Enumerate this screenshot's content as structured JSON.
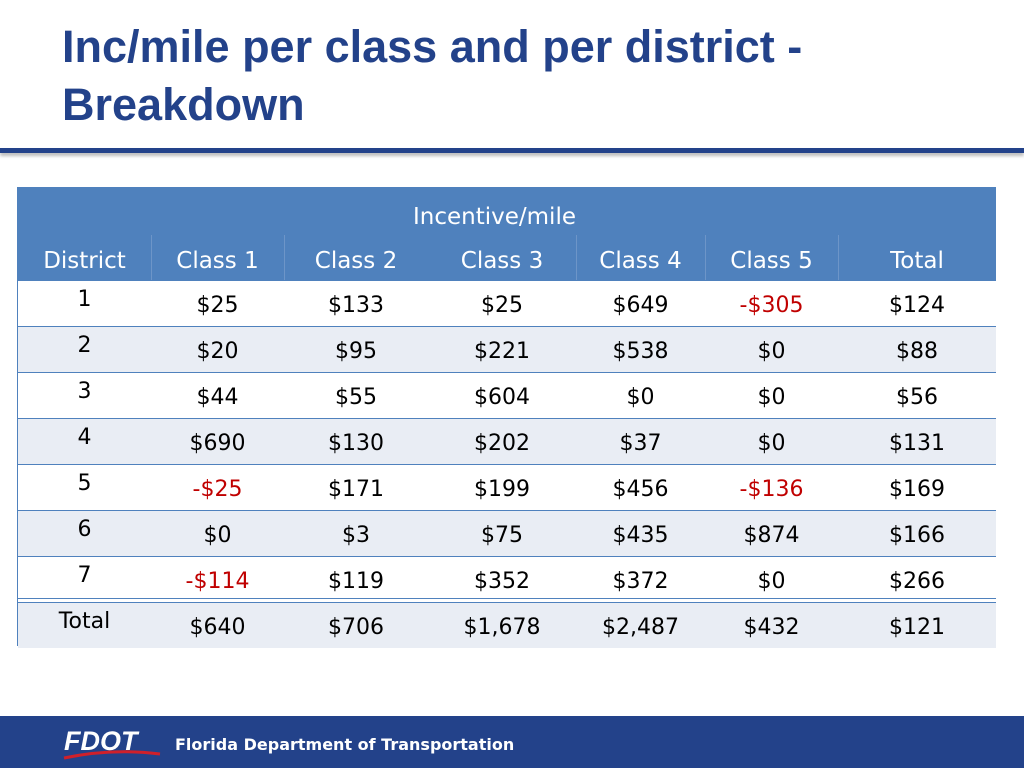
{
  "header": {
    "title": "Inc/mile per class and per district - Breakdown"
  },
  "table": {
    "group_header": "Incentive/mile",
    "columns": [
      "District",
      "Class 1",
      "Class 2",
      "Class 3",
      "Class 4",
      "Class 5",
      "Total"
    ],
    "rows": [
      [
        "1",
        "$25",
        "$133",
        "$25",
        "$649",
        "-$305",
        "$124"
      ],
      [
        "2",
        "$20",
        "$95",
        "$221",
        "$538",
        "$0",
        "$88"
      ],
      [
        "3",
        "$44",
        "$55",
        "$604",
        "$0",
        "$0",
        "$56"
      ],
      [
        "4",
        "$690",
        "$130",
        "$202",
        "$37",
        "$0",
        "$131"
      ],
      [
        "5",
        "-$25",
        "$171",
        "$199",
        "$456",
        "-$136",
        "$169"
      ],
      [
        "6",
        "$0",
        "$3",
        "$75",
        "$435",
        "$874",
        "$166"
      ],
      [
        "7",
        "-$114",
        "$119",
        "$352",
        "$372",
        "$0",
        "$266"
      ],
      [
        "Total",
        "$640",
        "$706",
        "$1,678",
        "$2,487",
        "$432",
        "$121"
      ]
    ]
  },
  "footer": {
    "logo": "FDOT",
    "organization": "Florida Department of Transportation"
  }
}
